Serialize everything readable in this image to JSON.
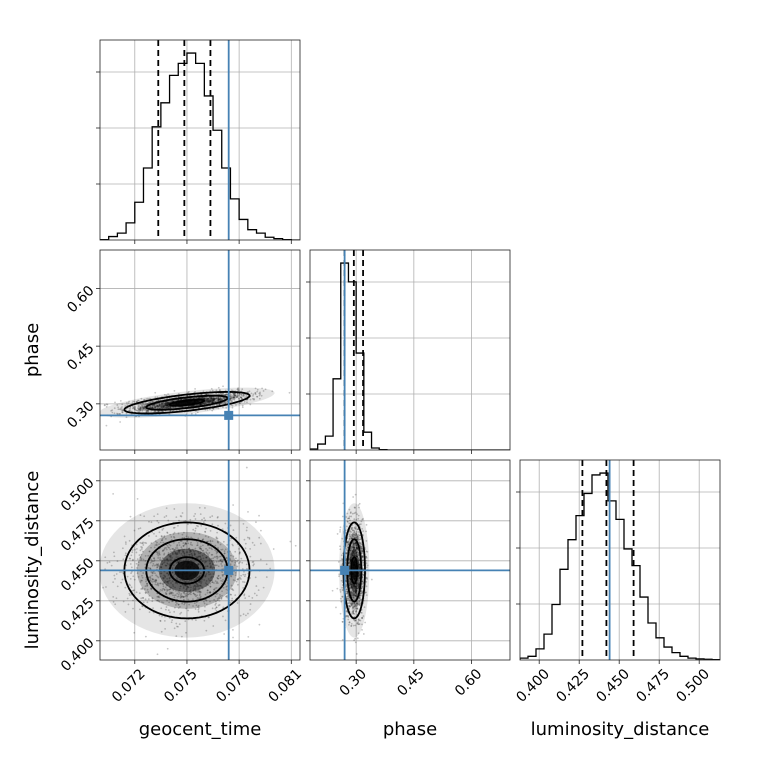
{
  "chart_data": {
    "type": "corner",
    "parameters": [
      "geocent_time",
      "phase",
      "luminosity_distance"
    ],
    "labels": {
      "geocent_time": "geocent_time",
      "phase": "phase",
      "luminosity_distance": "luminosity_distance"
    },
    "ranges": {
      "geocent_time": [
        0.07,
        0.0815
      ],
      "phase": [
        0.18,
        0.7
      ],
      "luminosity_distance": [
        0.388,
        0.513
      ]
    },
    "ticks": {
      "geocent_time": [
        0.072,
        0.075,
        0.078,
        0.081
      ],
      "phase": [
        0.3,
        0.45,
        0.6
      ],
      "luminosity_distance": [
        0.4,
        0.425,
        0.45,
        0.475,
        0.5
      ]
    },
    "tick_labels": {
      "geocent_time": [
        "0.072",
        "0.075",
        "0.078",
        "0.081"
      ],
      "phase": [
        "0.30",
        "0.45",
        "0.60"
      ],
      "luminosity_distance": [
        "0.400",
        "0.425",
        "0.450",
        "0.475",
        "0.500"
      ]
    },
    "truths": {
      "geocent_time": 0.0774,
      "phase": 0.27,
      "luminosity_distance": 0.444
    },
    "quantiles": {
      "geocent_time": [
        0.07335,
        0.07485,
        0.07635
      ],
      "phase": [
        0.27,
        0.294,
        0.318
      ],
      "luminosity_distance": [
        0.427,
        0.442,
        0.459
      ]
    },
    "histograms": {
      "geocent_time": {
        "edges": [
          0.07,
          0.0705,
          0.071,
          0.0715,
          0.072,
          0.0725,
          0.073,
          0.0735,
          0.074,
          0.0745,
          0.075,
          0.0755,
          0.076,
          0.0765,
          0.077,
          0.0775,
          0.078,
          0.0785,
          0.079,
          0.0795,
          0.08,
          0.0805,
          0.081,
          0.0815
        ],
        "counts": [
          1,
          10,
          20,
          50,
          110,
          210,
          330,
          400,
          480,
          515,
          545,
          515,
          420,
          320,
          210,
          120,
          60,
          30,
          20,
          8,
          4,
          1,
          0
        ]
      },
      "phase": {
        "edges": [
          0.18,
          0.2,
          0.22,
          0.24,
          0.26,
          0.28,
          0.3,
          0.32,
          0.34,
          0.36,
          0.38,
          0.4,
          0.42,
          0.44,
          0.46,
          0.48,
          0.5,
          0.52,
          0.54,
          0.56,
          0.58,
          0.6,
          0.62,
          0.64,
          0.66,
          0.68,
          0.7
        ],
        "counts": [
          5,
          30,
          70,
          360,
          945,
          850,
          490,
          90,
          10,
          2,
          0,
          0,
          0,
          0,
          0,
          0,
          0,
          0,
          0,
          0,
          0,
          0,
          0,
          0,
          0,
          0
        ]
      },
      "luminosity_distance": {
        "edges": [
          0.388,
          0.393,
          0.398,
          0.403,
          0.408,
          0.413,
          0.418,
          0.423,
          0.428,
          0.433,
          0.438,
          0.443,
          0.448,
          0.453,
          0.458,
          0.463,
          0.468,
          0.473,
          0.478,
          0.483,
          0.488,
          0.493,
          0.498,
          0.503,
          0.508,
          0.513
        ],
        "counts": [
          5,
          10,
          30,
          70,
          150,
          245,
          325,
          390,
          450,
          500,
          505,
          430,
          380,
          300,
          255,
          170,
          100,
          60,
          35,
          20,
          10,
          5,
          3,
          2,
          1
        ]
      }
    },
    "pair_stats": {
      "geocent_time|phase": {
        "mean": [
          0.075,
          0.303
        ],
        "sd": [
          0.0018,
          0.014
        ],
        "corr": 0.65
      },
      "geocent_time|luminosity_distance": {
        "mean": [
          0.075,
          0.444
        ],
        "sd": [
          0.0018,
          0.015
        ],
        "corr": 0.0
      },
      "phase|luminosity_distance": {
        "mean": [
          0.295,
          0.444
        ],
        "sd": [
          0.014,
          0.015
        ],
        "corr": 0.0
      }
    },
    "contour_levels": [
      0.39,
      0.86,
      1.0
    ],
    "grid": true,
    "colors": {
      "truth": "#4682b4",
      "lines": "#000000",
      "density": "#000000"
    }
  }
}
